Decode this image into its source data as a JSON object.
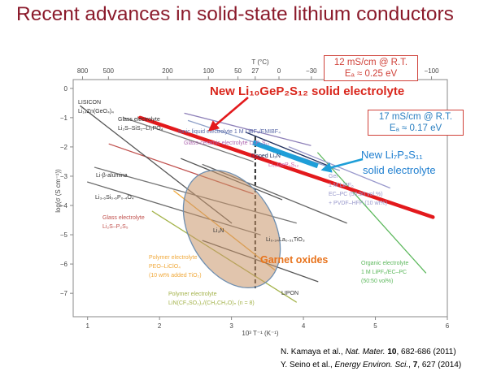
{
  "title": "Recent advances in solid-state lithium conductors",
  "chart_data": {
    "type": "line",
    "x_axis": {
      "label": "10³ T⁻¹ (K⁻¹)",
      "range": [
        0.8,
        6
      ],
      "ticks": [
        1,
        2,
        3,
        4,
        5,
        6
      ]
    },
    "top_axis": {
      "label": "T (°C)",
      "ticks": [
        "800",
        "500",
        "200",
        "100",
        "50",
        "27",
        "0",
        "−30",
        "−100"
      ],
      "tick_inv_T": [
        0.93,
        1.29,
        2.11,
        2.68,
        3.09,
        3.33,
        3.66,
        4.11,
        5.78
      ]
    },
    "y_axis": {
      "label": "log(σ (S cm⁻¹))",
      "range": [
        -7.8,
        0.3
      ],
      "ticks": [
        "0",
        "−1",
        "−2",
        "−3",
        "−4",
        "−5",
        "−6",
        "−7"
      ]
    },
    "reference_line_x": 3.33,
    "series": [
      {
        "name": "New Li10GeP2S12 solid electrolyte",
        "color": "#e3191c",
        "x": [
          1.73,
          5.8
        ],
        "y": [
          -1.0,
          -4.4
        ]
      },
      {
        "name": "New Li7P3S11 solid electrolyte",
        "color": "#1e9ed8",
        "x": [
          3.3,
          4.2
        ],
        "y": [
          -1.85,
          -2.65
        ]
      },
      {
        "name": "Doped Li3N",
        "color": "#22315e",
        "x": [
          3.2,
          4.4
        ],
        "y": [
          -1.5,
          -2.7
        ]
      },
      {
        "name": "Glass-ceramic electrolyte Li7P3S11",
        "color": "#8d7fb8",
        "x": [
          2.35,
          4.1
        ],
        "y": [
          -0.85,
          -1.95
        ]
      },
      {
        "name": "Li2S–SiS2–Li3PO4",
        "color": "#777777",
        "x": [
          1.5,
          3.3
        ],
        "y": [
          -1.0,
          -2.5
        ]
      },
      {
        "name": "Ionic liquid electrolyte 1 M LiBF4/EMIBF4",
        "color": "#8fa0c8",
        "x": [
          2.4,
          4.5
        ],
        "y": [
          -1.1,
          -2.8
        ]
      },
      {
        "name": "Li2S–P2S5",
        "color": "#c0504d",
        "x": [
          1.3,
          3.3
        ],
        "y": [
          -1.9,
          -3.6
        ]
      },
      {
        "name": "LISICON Li14Zn(GeO4)4",
        "color": "#555555",
        "x": [
          0.9,
          3.0
        ],
        "y": [
          -0.6,
          -4.6
        ]
      },
      {
        "name": "Li-β-alumina",
        "color": "#777777",
        "x": [
          1.1,
          3.9
        ],
        "y": [
          -2.7,
          -4.6
        ]
      },
      {
        "name": "Li3.6Si0.6P0.4O4",
        "color": "#6a6a6a",
        "x": [
          1.0,
          3.4
        ],
        "y": [
          -3.2,
          -5.0
        ]
      },
      {
        "name": "Li3N",
        "color": "#555555",
        "x": [
          2.3,
          3.7
        ],
        "y": [
          -2.4,
          -3.8
        ]
      },
      {
        "name": "Li0.34La0.51TiO3",
        "color": "#666666",
        "x": [
          2.6,
          4.6
        ],
        "y": [
          -2.6,
          -4.6
        ]
      },
      {
        "name": "Polymer electrolyte PEO–LiClO4 (10 wt% added TiO2)",
        "color": "#f0a93c",
        "x": [
          2.2,
          3.6
        ],
        "y": [
          -3.5,
          -6.2
        ]
      },
      {
        "name": "Polymer electrolyte LiN(CF3SO2)2/(CH2CH2O)n (n = 8)",
        "color": "#a4b34b",
        "x": [
          1.9,
          3.9
        ],
        "y": [
          -4.2,
          -7.3
        ]
      },
      {
        "name": "Organic electrolyte 1 M LiPF6/EC–PC (50:50 vol.%)",
        "color": "#5cb85c",
        "x": [
          4.2,
          5.7
        ],
        "y": [
          -2.2,
          -6.3
        ]
      },
      {
        "name": "Gel electrolyte 1 M LiPF6 EC–PC (50:50 vol.%) + PVDF–HFP (10 wt%)",
        "color": "#9999cc",
        "x": [
          3.8,
          5.2
        ],
        "y": [
          -2.0,
          -3.4
        ]
      },
      {
        "name": "Garnet oxides",
        "color": "#c48a5c"
      },
      {
        "name": "LIPON",
        "color": "#555555",
        "x": [
          2.6,
          4.2
        ],
        "y": [
          -5.2,
          -6.6
        ]
      }
    ],
    "plot_labels": [
      {
        "id": "lisicon",
        "text": "LISICON",
        "color": "#333333"
      },
      {
        "id": "lisicon2",
        "text": "Li₁₄Zn(GeO₄)₄",
        "color": "#333333"
      },
      {
        "id": "glass1",
        "text": "Glass electrolyte",
        "color": "#333333"
      },
      {
        "id": "glass1b",
        "text": "Li₂S–SiS₂–Li₃PO₄",
        "color": "#333333"
      },
      {
        "id": "ionic",
        "text": "Ionic liquid electrolyte 1 M LiBF₄/EMIBF₄",
        "color": "#5b6aa8"
      },
      {
        "id": "glassceramic",
        "text": "Glass-ceramic electrolyte Li₇P₃S₁₁",
        "color": "#b06ab3"
      },
      {
        "id": "doped",
        "text": "Doped Li₃N",
        "color": "#22315e"
      },
      {
        "id": "lgps-small",
        "text": "Li₁₀GeP₂S₁₂",
        "color": "#d060a8"
      },
      {
        "id": "alumina",
        "text": "Li-β-alumina",
        "color": "#333333"
      },
      {
        "id": "lisipo",
        "text": "Li₃.₆Si₀.₆P₀.₄O₄",
        "color": "#333333"
      },
      {
        "id": "glass2",
        "text": "Glass electrolyte",
        "color": "#c0504d"
      },
      {
        "id": "glass2b",
        "text": "Li₂S–P₂S₅",
        "color": "#c0504d"
      },
      {
        "id": "li3n",
        "text": "Li₃N",
        "color": "#333333"
      },
      {
        "id": "llto",
        "text": "Li₀.₃₄La₀.₅₁TiO₃",
        "color": "#333333"
      },
      {
        "id": "poly1",
        "text": "Polymer electrolyte",
        "color": "#f0a93c"
      },
      {
        "id": "poly1b",
        "text": "PEO–LiClO₄",
        "color": "#f0a93c"
      },
      {
        "id": "poly1c",
        "text": "(10 wt% added TiO₂)",
        "color": "#f0a93c"
      },
      {
        "id": "gel1",
        "text": "Gel",
        "color": "#9999cc"
      },
      {
        "id": "gel2",
        "text": "1 M LiPF₆",
        "color": "#9999cc"
      },
      {
        "id": "gel3",
        "text": "EC–PC (50:50 vol.%)",
        "color": "#9999cc"
      },
      {
        "id": "gel4",
        "text": "+ PVDF–HFP (10 wt%)",
        "color": "#9999cc"
      },
      {
        "id": "org1",
        "text": "Organic electrolyte",
        "color": "#5cb85c"
      },
      {
        "id": "org2",
        "text": "1 M LiPF₆/EC–PC",
        "color": "#5cb85c"
      },
      {
        "id": "org3",
        "text": "(50:50 vol%)",
        "color": "#5cb85c"
      },
      {
        "id": "lipon",
        "text": "LIPON",
        "color": "#333333"
      },
      {
        "id": "poly2",
        "text": "Polymer electrolyte",
        "color": "#a4b34b"
      },
      {
        "id": "poly2b",
        "text": "LiN(CF₃SO₂)₂/(CH₂CH₂O)ₙ (n = 8)",
        "color": "#a4b34b"
      }
    ]
  },
  "callouts": {
    "lgps_label": "New Li₁₀GeP₂S₁₂ solid electrolyte",
    "lps_label_line1": "New Li₇P₃S₁₁",
    "lps_label_line2": "solid electrolyte",
    "garnet_label": "Garnet oxides",
    "box1_line1": "12 mS/cm @ R.T.",
    "box1_line2": "Eₐ ≈ 0.25 eV",
    "box2_line1": "17 mS/cm @ R.T.",
    "box2_line2": "Eₐ ≈ 0.17 eV"
  },
  "references": {
    "ref1_prefix": "N. Kamaya et al., ",
    "ref1_journal": "Nat. Mater.",
    "ref1_volume": "10",
    "ref1_rest": ", 682-686 (2011)",
    "ref2_prefix": "Y. Seino et al., ",
    "ref2_journal": "Energy Environ. Sci.",
    "ref2_volume": "7",
    "ref2_rest": ", 627 (2014)"
  }
}
